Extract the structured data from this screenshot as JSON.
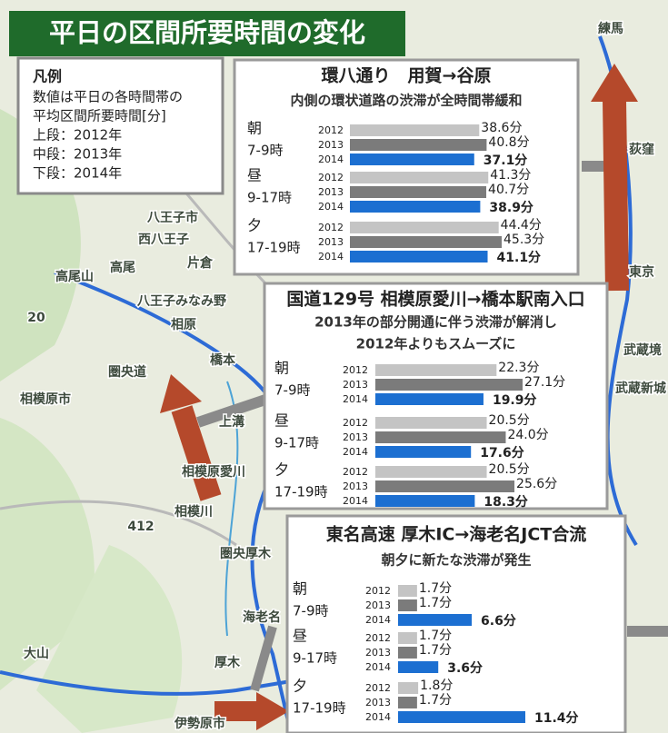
{
  "title": "平日の区間所要時間の変化",
  "legend": {
    "heading": "凡例",
    "lines": [
      "数値は平日の各時間帯の",
      "平均区間所要時間[分]",
      "上段：2012年",
      "中段：2013年",
      "下段：2014年"
    ]
  },
  "map_labels": [
    "練馬",
    "荻窪",
    "東京",
    "武蔵境",
    "武蔵新城",
    "八王子市",
    "西八王子",
    "高尾山",
    "高尾",
    "片倉",
    "八王子みなみ野",
    "相原",
    "橋本",
    "圏央道",
    "相模原市",
    "上溝",
    "相模原愛川",
    "相模川",
    "412",
    "圏央厚木",
    "海老名",
    "厚木",
    "大山",
    "伊勢原市",
    "20"
  ],
  "chart_data": [
    {
      "type": "bar",
      "title": "環八通り　用賀→谷原",
      "subtitle": [
        "内側の環状道路の渋滞が全時間帯緩和"
      ],
      "categories": [
        "朝",
        "昼",
        "夕"
      ],
      "category_times": [
        "7-9時",
        "9-17時",
        "17-19時"
      ],
      "series": [
        {
          "name": "2012",
          "color": "#c4c4c4",
          "values": [
            38.6,
            41.3,
            44.4
          ],
          "value_labels": [
            "38.6分",
            "41.3分",
            "44.4分"
          ]
        },
        {
          "name": "2013",
          "color": "#7b7b7b",
          "values": [
            40.8,
            40.7,
            45.3
          ],
          "value_labels": [
            "40.8分",
            "40.7分",
            "45.3分"
          ]
        },
        {
          "name": "2014",
          "color": "#1c6fd1",
          "values": [
            37.1,
            38.9,
            41.1
          ],
          "value_labels": [
            "37.1分",
            "38.9分",
            "41.1分"
          ]
        }
      ]
    },
    {
      "type": "bar",
      "title": "国道129号 相模原愛川→橋本駅南入口",
      "subtitle": [
        "2013年の部分開通に伴う渋滞が解消し",
        "2012年よりもスムーズに"
      ],
      "categories": [
        "朝",
        "昼",
        "夕"
      ],
      "category_times": [
        "7-9時",
        "9-17時",
        "17-19時"
      ],
      "series": [
        {
          "name": "2012",
          "color": "#c4c4c4",
          "values": [
            22.3,
            20.5,
            20.5
          ],
          "value_labels": [
            "22.3分",
            "20.5分",
            "20.5分"
          ]
        },
        {
          "name": "2013",
          "color": "#7b7b7b",
          "values": [
            27.1,
            24.0,
            25.6
          ],
          "value_labels": [
            "27.1分",
            "24.0分",
            "25.6分"
          ]
        },
        {
          "name": "2014",
          "color": "#1c6fd1",
          "values": [
            19.9,
            17.6,
            18.3
          ],
          "value_labels": [
            "19.9分",
            "17.6分",
            "18.3分"
          ]
        }
      ]
    },
    {
      "type": "bar",
      "title": "東名高速 厚木IC→海老名JCT合流",
      "subtitle": [
        "朝夕に新たな渋滞が発生"
      ],
      "categories": [
        "朝",
        "昼",
        "夕"
      ],
      "category_times": [
        "7-9時",
        "9-17時",
        "17-19時"
      ],
      "series": [
        {
          "name": "2012",
          "color": "#c4c4c4",
          "values": [
            1.7,
            1.7,
            1.8
          ],
          "value_labels": [
            "1.7分",
            "1.7分",
            "1.8分"
          ]
        },
        {
          "name": "2013",
          "color": "#7b7b7b",
          "values": [
            1.7,
            1.7,
            1.7
          ],
          "value_labels": [
            "1.7分",
            "1.7分",
            "1.7分"
          ]
        },
        {
          "name": "2014",
          "color": "#1c6fd1",
          "values": [
            6.6,
            3.6,
            11.4
          ],
          "value_labels": [
            "6.6分",
            "3.6分",
            "11.4分"
          ]
        }
      ]
    }
  ]
}
